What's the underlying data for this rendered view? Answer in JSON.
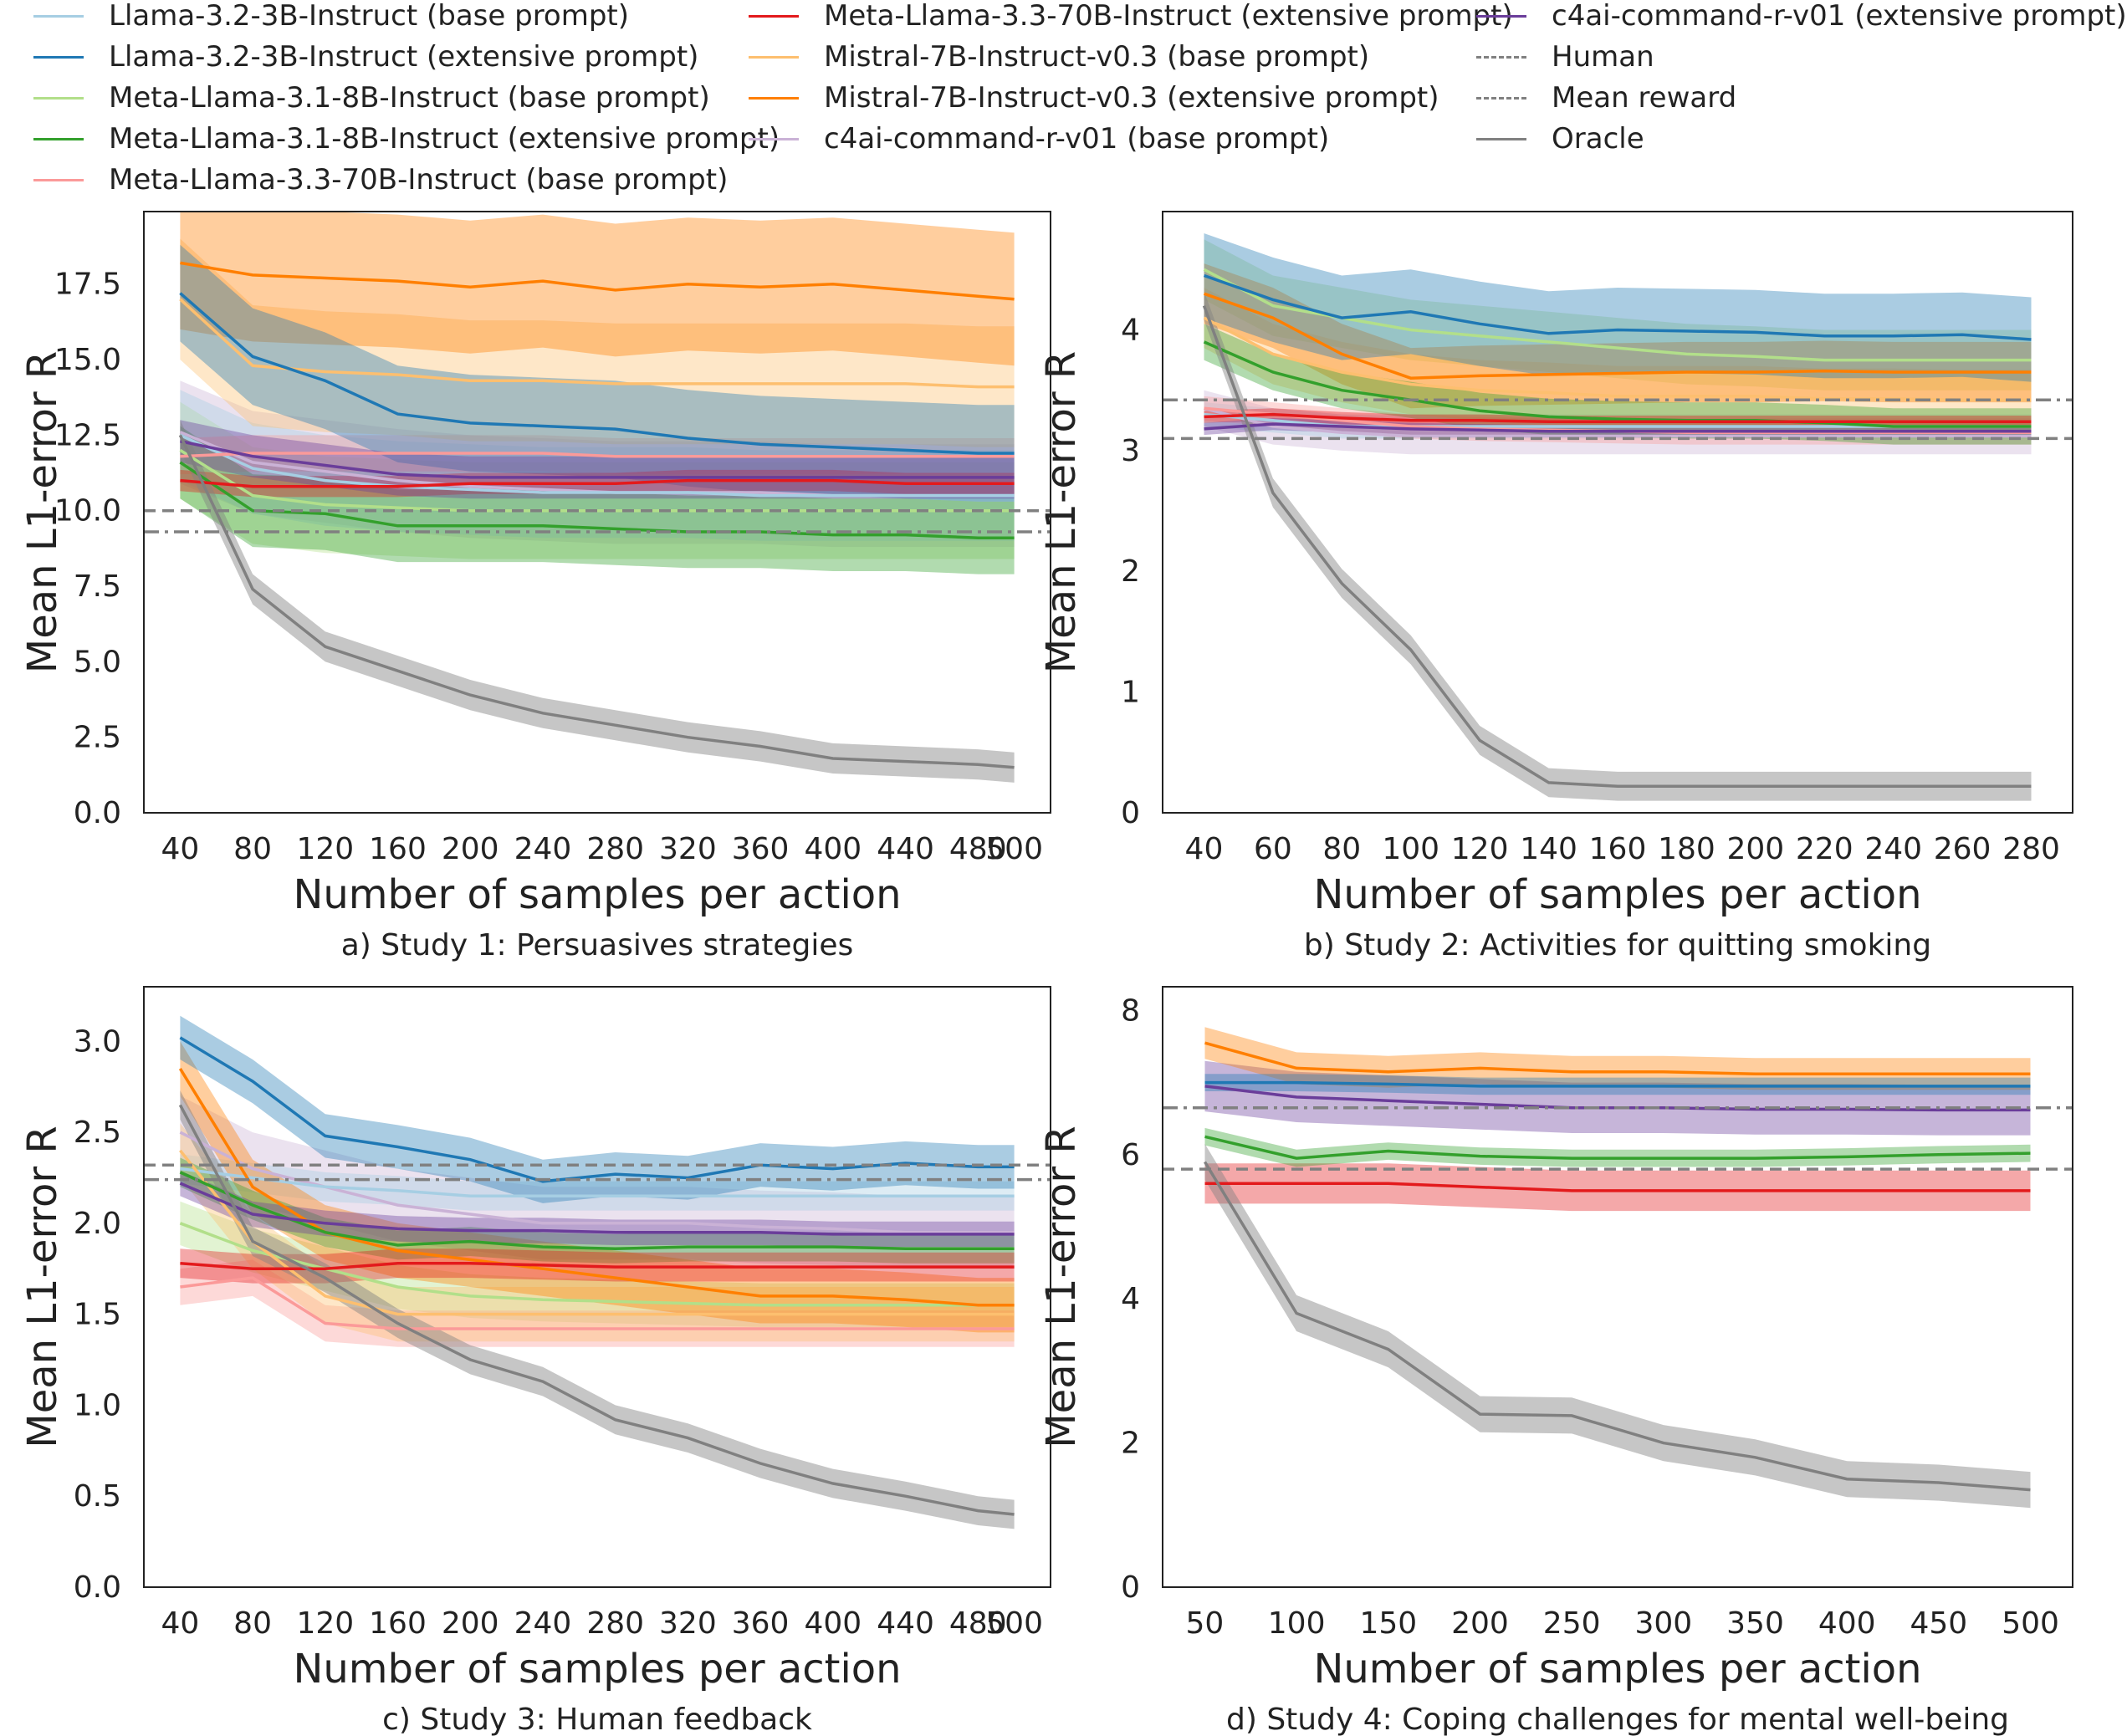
{
  "legend": [
    {
      "key": "l32b",
      "label": "Llama-3.2-3B-Instruct (base prompt)",
      "color": "#a6cee3",
      "dash": "solid"
    },
    {
      "key": "l32e",
      "label": "Llama-3.2-3B-Instruct (extensive prompt)",
      "color": "#1f78b4",
      "dash": "solid"
    },
    {
      "key": "l31b",
      "label": "Meta-Llama-3.1-8B-Instruct (base prompt)",
      "color": "#b2df8a",
      "dash": "solid"
    },
    {
      "key": "l31e",
      "label": "Meta-Llama-3.1-8B-Instruct (extensive prompt)",
      "color": "#33a02c",
      "dash": "solid"
    },
    {
      "key": "l33b",
      "label": "Meta-Llama-3.3-70B-Instruct (base prompt)",
      "color": "#fb9a99",
      "dash": "solid"
    },
    {
      "key": "l33e",
      "label": "Meta-Llama-3.3-70B-Instruct (extensive prompt)",
      "color": "#e31a1c",
      "dash": "solid"
    },
    {
      "key": "m7b",
      "label": "Mistral-7B-Instruct-v0.3 (base prompt)",
      "color": "#fdbf6f",
      "dash": "solid"
    },
    {
      "key": "m7e",
      "label": "Mistral-7B-Instruct-v0.3 (extensive prompt)",
      "color": "#ff7f00",
      "dash": "solid"
    },
    {
      "key": "c4b",
      "label": "c4ai-command-r-v01 (base prompt)",
      "color": "#cab2d6",
      "dash": "solid"
    },
    {
      "key": "c4e",
      "label": "c4ai-command-r-v01 (extensive prompt)",
      "color": "#6a3d9a",
      "dash": "solid"
    },
    {
      "key": "human",
      "label": "Human",
      "color": "#808080",
      "dash": "dashed"
    },
    {
      "key": "mean",
      "label": "Mean reward",
      "color": "#808080",
      "dash": "dashdot"
    },
    {
      "key": "oracle",
      "label": "Oracle",
      "color": "#808080",
      "dash": "solid"
    }
  ],
  "chart_data": [
    {
      "type": "line",
      "panel": "a",
      "caption": "a) Study 1: Persuasives strategies",
      "xlabel": "Number of samples per action",
      "ylabel": "Mean L1-error R",
      "x": [
        40,
        80,
        120,
        160,
        200,
        240,
        280,
        320,
        360,
        400,
        440,
        480,
        500
      ],
      "xticks": [
        "40",
        "80",
        "120",
        "160",
        "200",
        "240",
        "280",
        "320",
        "360",
        "400",
        "440",
        "480",
        "500"
      ],
      "xlim": [
        20,
        520
      ],
      "ylim": [
        0,
        19.9
      ],
      "yticks": [
        "0.0",
        "2.5",
        "5.0",
        "7.5",
        "10.0",
        "12.5",
        "15.0",
        "17.5"
      ],
      "hlines": {
        "human": 10.0,
        "mean": 9.3
      },
      "series": [
        {
          "key": "c4b",
          "values": [
            12.6,
            11.6,
            11.3,
            11.0,
            10.8,
            10.7,
            10.6,
            10.6,
            10.6,
            10.5,
            10.5,
            10.5,
            10.5
          ],
          "band": 1.7
        },
        {
          "key": "l31b",
          "values": [
            12.0,
            10.5,
            10.2,
            10.1,
            10.0,
            10.0,
            10.0,
            10.0,
            10.0,
            10.0,
            10.0,
            10.0,
            10.0
          ],
          "band": 1.6
        },
        {
          "key": "l32b",
          "values": [
            12.5,
            11.4,
            11.0,
            10.8,
            10.7,
            10.6,
            10.6,
            10.6,
            10.5,
            10.5,
            10.5,
            10.5,
            10.5
          ],
          "band": 1.5
        },
        {
          "key": "l33b",
          "values": [
            11.8,
            11.9,
            11.9,
            11.9,
            11.9,
            11.9,
            11.8,
            11.8,
            11.8,
            11.8,
            11.8,
            11.8,
            11.8
          ],
          "band": 0.6
        },
        {
          "key": "m7b",
          "values": [
            17.0,
            14.8,
            14.6,
            14.5,
            14.3,
            14.3,
            14.2,
            14.2,
            14.2,
            14.2,
            14.2,
            14.1,
            14.1
          ],
          "band": 2.0
        },
        {
          "key": "m7e",
          "values": [
            18.2,
            17.8,
            17.7,
            17.6,
            17.4,
            17.6,
            17.3,
            17.5,
            17.4,
            17.5,
            17.3,
            17.1,
            17.0
          ],
          "band": 2.2
        },
        {
          "key": "l32e",
          "values": [
            17.2,
            15.1,
            14.3,
            13.2,
            12.9,
            12.8,
            12.7,
            12.4,
            12.2,
            12.1,
            12.0,
            11.9,
            11.9
          ],
          "band": 1.6
        },
        {
          "key": "l31e",
          "values": [
            11.6,
            10.0,
            9.9,
            9.5,
            9.5,
            9.5,
            9.4,
            9.3,
            9.3,
            9.2,
            9.2,
            9.1,
            9.1
          ],
          "band": 1.2
        },
        {
          "key": "l33e",
          "values": [
            11.0,
            10.8,
            10.8,
            10.8,
            10.9,
            10.9,
            10.9,
            11.0,
            11.0,
            11.0,
            10.9,
            10.9,
            10.9
          ],
          "band": 0.35
        },
        {
          "key": "c4e",
          "values": [
            12.3,
            11.8,
            11.5,
            11.2,
            11.1,
            11.1,
            11.1,
            11.1,
            11.1,
            11.1,
            11.1,
            11.1,
            11.1
          ],
          "band": 0.7
        },
        {
          "key": "oracle",
          "values": [
            12.5,
            7.4,
            5.5,
            4.7,
            3.9,
            3.3,
            2.9,
            2.5,
            2.2,
            1.8,
            1.7,
            1.6,
            1.5
          ],
          "band": 0.5
        }
      ]
    },
    {
      "type": "line",
      "panel": "b",
      "caption": "b) Study 2: Activities for quitting smoking",
      "xlabel": "Number of samples per action",
      "ylabel": "Mean L1-error R",
      "x": [
        40,
        60,
        80,
        100,
        120,
        140,
        160,
        180,
        200,
        220,
        240,
        260,
        280
      ],
      "xticks": [
        "40",
        "60",
        "80",
        "100",
        "120",
        "140",
        "160",
        "180",
        "200",
        "220",
        "240",
        "260",
        "280"
      ],
      "xlim": [
        28,
        292
      ],
      "ylim": [
        0,
        4.98
      ],
      "yticks": [
        "0",
        "1",
        "2",
        "3",
        "4"
      ],
      "hlines": {
        "human": 3.1,
        "mean": 3.42
      },
      "series": [
        {
          "key": "c4b",
          "values": [
            3.35,
            3.2,
            3.15,
            3.12,
            3.12,
            3.12,
            3.12,
            3.12,
            3.12,
            3.12,
            3.12,
            3.12,
            3.12
          ],
          "band": 0.15
        },
        {
          "key": "l31b",
          "values": [
            4.5,
            4.2,
            4.1,
            4.0,
            3.95,
            3.9,
            3.85,
            3.8,
            3.78,
            3.75,
            3.75,
            3.75,
            3.75
          ],
          "band": 0.25
        },
        {
          "key": "l32b",
          "values": [
            3.3,
            3.25,
            3.2,
            3.2,
            3.2,
            3.2,
            3.2,
            3.2,
            3.2,
            3.2,
            3.2,
            3.2,
            3.2
          ],
          "band": 0.1
        },
        {
          "key": "l33b",
          "values": [
            3.35,
            3.3,
            3.25,
            3.2,
            3.18,
            3.17,
            3.16,
            3.15,
            3.15,
            3.15,
            3.15,
            3.15,
            3.15
          ],
          "band": 0.1
        },
        {
          "key": "m7b",
          "values": [
            4.1,
            3.8,
            3.65,
            3.55,
            3.5,
            3.48,
            3.45,
            3.45,
            3.45,
            3.43,
            3.43,
            3.42,
            3.42
          ],
          "band": 0.25
        },
        {
          "key": "m7e",
          "values": [
            4.3,
            4.1,
            3.8,
            3.6,
            3.62,
            3.63,
            3.64,
            3.65,
            3.65,
            3.66,
            3.65,
            3.65,
            3.65
          ],
          "band": 0.25
        },
        {
          "key": "l32e",
          "values": [
            4.45,
            4.25,
            4.1,
            4.15,
            4.05,
            3.97,
            4.0,
            3.99,
            3.98,
            3.95,
            3.95,
            3.96,
            3.92
          ],
          "band": 0.35
        },
        {
          "key": "l31e",
          "values": [
            3.9,
            3.65,
            3.5,
            3.42,
            3.33,
            3.28,
            3.26,
            3.25,
            3.25,
            3.23,
            3.2,
            3.2,
            3.2
          ],
          "band": 0.15
        },
        {
          "key": "l33e",
          "values": [
            3.28,
            3.3,
            3.27,
            3.25,
            3.25,
            3.24,
            3.24,
            3.24,
            3.24,
            3.24,
            3.24,
            3.24,
            3.24
          ],
          "band": 0.05
        },
        {
          "key": "c4e",
          "values": [
            3.18,
            3.22,
            3.2,
            3.18,
            3.17,
            3.16,
            3.16,
            3.16,
            3.16,
            3.16,
            3.16,
            3.16,
            3.16
          ],
          "band": 0.05
        },
        {
          "key": "oracle",
          "values": [
            4.2,
            2.65,
            1.9,
            1.35,
            0.6,
            0.25,
            0.22,
            0.22,
            0.22,
            0.22,
            0.22,
            0.22,
            0.22
          ],
          "band": 0.12
        }
      ]
    },
    {
      "type": "line",
      "panel": "c",
      "caption": "c) Study 3: Human feedback",
      "xlabel": "Number of samples per action",
      "ylabel": "Mean L1-error R",
      "x": [
        40,
        80,
        120,
        160,
        200,
        240,
        280,
        320,
        360,
        400,
        440,
        480,
        500
      ],
      "xticks": [
        "40",
        "80",
        "120",
        "160",
        "200",
        "240",
        "280",
        "320",
        "360",
        "400",
        "440",
        "480",
        "500"
      ],
      "xlim": [
        20,
        520
      ],
      "ylim": [
        0,
        3.3
      ],
      "yticks": [
        "0.0",
        "0.5",
        "1.0",
        "1.5",
        "2.0",
        "2.5",
        "3.0"
      ],
      "hlines": {
        "human": 2.32,
        "mean": 2.24
      },
      "series": [
        {
          "key": "c4b",
          "values": [
            2.5,
            2.3,
            2.2,
            2.1,
            2.05,
            2.0,
            2.0,
            2.0,
            1.98,
            1.97,
            1.95,
            1.95,
            1.95
          ],
          "band": 0.2
        },
        {
          "key": "l31b",
          "values": [
            2.0,
            1.85,
            1.75,
            1.65,
            1.6,
            1.58,
            1.57,
            1.56,
            1.55,
            1.55,
            1.55,
            1.55,
            1.55
          ],
          "band": 0.12
        },
        {
          "key": "l32b",
          "values": [
            2.3,
            2.25,
            2.2,
            2.18,
            2.15,
            2.15,
            2.15,
            2.15,
            2.15,
            2.15,
            2.15,
            2.15,
            2.15
          ],
          "band": 0.08
        },
        {
          "key": "l33b",
          "values": [
            1.65,
            1.7,
            1.45,
            1.42,
            1.42,
            1.42,
            1.42,
            1.42,
            1.42,
            1.42,
            1.42,
            1.42,
            1.42
          ],
          "band": 0.1
        },
        {
          "key": "m7b",
          "values": [
            2.4,
            1.9,
            1.6,
            1.5,
            1.5,
            1.5,
            1.5,
            1.5,
            1.5,
            1.5,
            1.5,
            1.5,
            1.5
          ],
          "band": 0.15
        },
        {
          "key": "m7e",
          "values": [
            2.85,
            2.2,
            1.95,
            1.85,
            1.8,
            1.75,
            1.7,
            1.65,
            1.6,
            1.6,
            1.58,
            1.55,
            1.55
          ],
          "band": 0.15
        },
        {
          "key": "l32e",
          "values": [
            3.02,
            2.78,
            2.48,
            2.42,
            2.35,
            2.23,
            2.27,
            2.25,
            2.32,
            2.3,
            2.33,
            2.31,
            2.31
          ],
          "band": 0.12
        },
        {
          "key": "l31e",
          "values": [
            2.28,
            2.1,
            1.95,
            1.88,
            1.9,
            1.87,
            1.86,
            1.87,
            1.87,
            1.87,
            1.86,
            1.86,
            1.86
          ],
          "band": 0.08
        },
        {
          "key": "l33e",
          "values": [
            1.78,
            1.75,
            1.75,
            1.78,
            1.78,
            1.77,
            1.76,
            1.76,
            1.76,
            1.76,
            1.76,
            1.76,
            1.76
          ],
          "band": 0.08
        },
        {
          "key": "c4e",
          "values": [
            2.22,
            2.05,
            2.0,
            1.97,
            1.96,
            1.96,
            1.95,
            1.95,
            1.95,
            1.94,
            1.94,
            1.94,
            1.94
          ],
          "band": 0.07
        },
        {
          "key": "oracle",
          "values": [
            2.65,
            1.9,
            1.7,
            1.45,
            1.25,
            1.13,
            0.92,
            0.82,
            0.68,
            0.57,
            0.5,
            0.42,
            0.4
          ],
          "band": 0.08
        }
      ]
    },
    {
      "type": "line",
      "panel": "d",
      "caption": "d) Study 4: Coping challenges for mental well-being",
      "xlabel": "Number of samples per action",
      "ylabel": "Mean L1-error R",
      "x": [
        50,
        100,
        150,
        200,
        250,
        300,
        350,
        400,
        450,
        500
      ],
      "xticks": [
        "50",
        "100",
        "150",
        "200",
        "250",
        "300",
        "350",
        "400",
        "450",
        "500"
      ],
      "xlim": [
        27,
        523
      ],
      "ylim": [
        0,
        8.33
      ],
      "yticks": [
        "0",
        "2",
        "4",
        "6",
        "8"
      ],
      "hlines": {
        "human": 5.8,
        "mean": 6.65
      },
      "series": [
        {
          "key": "c4e",
          "values": [
            6.95,
            6.8,
            6.75,
            6.7,
            6.65,
            6.65,
            6.63,
            6.63,
            6.62,
            6.62
          ],
          "band": 0.35
        },
        {
          "key": "l33e",
          "values": [
            5.6,
            5.6,
            5.6,
            5.55,
            5.5,
            5.5,
            5.5,
            5.5,
            5.5,
            5.5
          ],
          "band": 0.28
        },
        {
          "key": "l31e",
          "values": [
            6.25,
            5.95,
            6.05,
            5.98,
            5.95,
            5.95,
            5.95,
            5.97,
            6.0,
            6.02
          ],
          "band": 0.12
        },
        {
          "key": "m7e",
          "values": [
            7.55,
            7.2,
            7.15,
            7.2,
            7.15,
            7.15,
            7.12,
            7.12,
            7.12,
            7.12
          ],
          "band": 0.22
        },
        {
          "key": "l32e",
          "values": [
            7.0,
            7.0,
            6.98,
            6.95,
            6.95,
            6.95,
            6.95,
            6.95,
            6.95,
            6.95
          ],
          "band": 0.12
        },
        {
          "key": "oracle",
          "values": [
            5.9,
            3.8,
            3.3,
            2.4,
            2.38,
            2.0,
            1.8,
            1.5,
            1.45,
            1.35
          ],
          "band": 0.25
        }
      ]
    }
  ]
}
